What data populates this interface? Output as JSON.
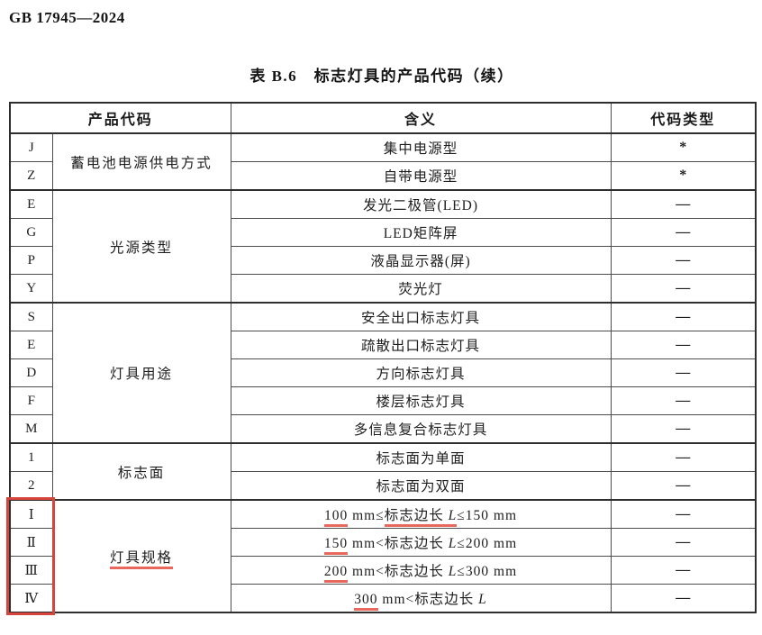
{
  "page": {
    "doc_number": "GB 17945—2024",
    "table_title": "表 B.6　标志灯具的产品代码（续）"
  },
  "table": {
    "headers": {
      "product_code": "产品代码",
      "meaning": "含义",
      "code_type": "代码类型"
    },
    "groups": [
      {
        "category": "蓄电池电源供电方式",
        "rows": [
          {
            "code": "J",
            "meaning": [
              {
                "text": "集中电源型"
              }
            ],
            "type": "*"
          },
          {
            "code": "Z",
            "meaning": [
              {
                "text": "自带电源型"
              }
            ],
            "type": "*"
          }
        ]
      },
      {
        "category": "光源类型",
        "rows": [
          {
            "code": "E",
            "meaning": [
              {
                "text": "发光二极管(LED)"
              }
            ],
            "type": "—"
          },
          {
            "code": "G",
            "meaning": [
              {
                "text": "LED矩阵屏"
              }
            ],
            "type": "—"
          },
          {
            "code": "P",
            "meaning": [
              {
                "text": "液晶显示器(屏)"
              }
            ],
            "type": "—"
          },
          {
            "code": "Y",
            "meaning": [
              {
                "text": "荧光灯"
              }
            ],
            "type": "—"
          }
        ]
      },
      {
        "category": "灯具用途",
        "rows": [
          {
            "code": "S",
            "meaning": [
              {
                "text": "安全出口标志灯具"
              }
            ],
            "type": "—"
          },
          {
            "code": "E",
            "meaning": [
              {
                "text": "疏散出口标志灯具"
              }
            ],
            "type": "—"
          },
          {
            "code": "D",
            "meaning": [
              {
                "text": "方向标志灯具"
              }
            ],
            "type": "—"
          },
          {
            "code": "F",
            "meaning": [
              {
                "text": "楼层标志灯具"
              }
            ],
            "type": "—"
          },
          {
            "code": "M",
            "meaning": [
              {
                "text": "多信息复合标志灯具"
              }
            ],
            "type": "—"
          }
        ]
      },
      {
        "category": "标志面",
        "rows": [
          {
            "code": "1",
            "meaning": [
              {
                "text": "标志面为单面"
              }
            ],
            "type": "—"
          },
          {
            "code": "2",
            "meaning": [
              {
                "text": "标志面为双面"
              }
            ],
            "type": "—"
          }
        ]
      },
      {
        "category": "灯具规格",
        "category_underline": true,
        "code_box": true,
        "rows": [
          {
            "code": "Ⅰ",
            "meaning": [
              {
                "text": "100",
                "underline": true
              },
              {
                "text": " mm≤"
              },
              {
                "text": "标志边长 ",
                "underline": true
              },
              {
                "text": "L",
                "underline": true,
                "italic": true
              },
              {
                "text": "≤150 mm"
              }
            ],
            "type": "—"
          },
          {
            "code": "Ⅱ",
            "meaning": [
              {
                "text": "150",
                "underline": true
              },
              {
                "text": " mm<标志边长 "
              },
              {
                "text": "L",
                "italic": true
              },
              {
                "text": "≤200 mm"
              }
            ],
            "type": "—"
          },
          {
            "code": "Ⅲ",
            "meaning": [
              {
                "text": "200",
                "underline": true
              },
              {
                "text": " mm<标志边长 "
              },
              {
                "text": "L",
                "italic": true
              },
              {
                "text": "≤300 mm"
              }
            ],
            "type": "—"
          },
          {
            "code": "Ⅳ",
            "meaning": [
              {
                "text": "300",
                "underline": true
              },
              {
                "text": " mm<标志边长 "
              },
              {
                "text": "L",
                "italic": true
              }
            ],
            "type": "—"
          }
        ]
      }
    ]
  },
  "annotations": {
    "underline_color": "#e8685e",
    "box_color": "#d6453c"
  }
}
